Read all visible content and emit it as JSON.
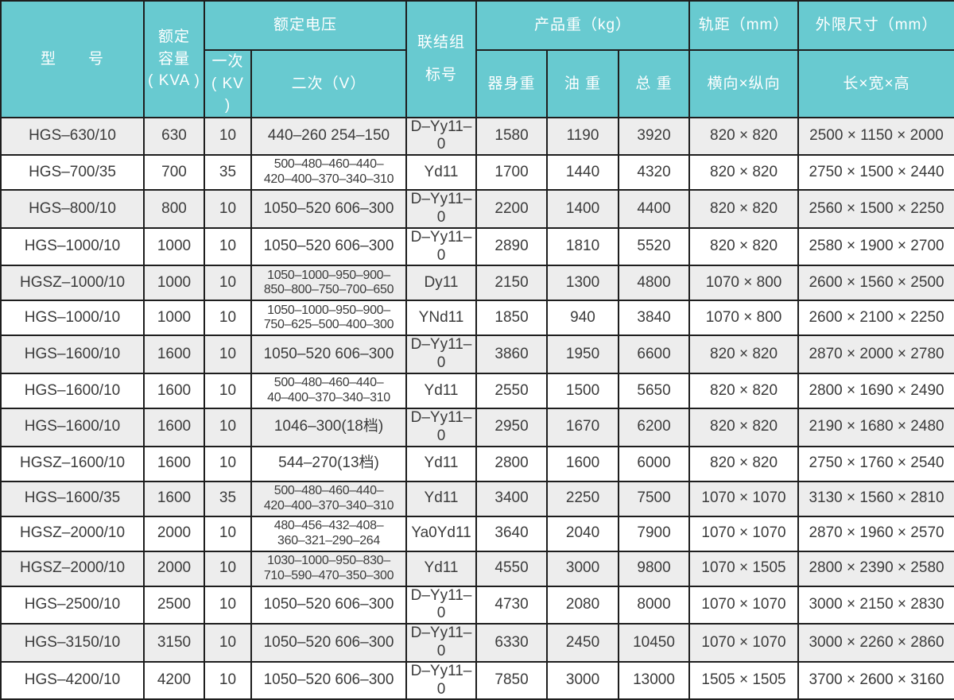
{
  "colors": {
    "header_bg": "#68cad0",
    "header_text": "#ffffff",
    "row_odd": "#ededed",
    "row_even": "#ffffff",
    "border": "#1e1e1e",
    "text": "#3b3b3b"
  },
  "table": {
    "header": {
      "model": "型　　号",
      "capacity": [
        "额定",
        "容量",
        "( KVA )"
      ],
      "voltage": "额定电压",
      "primary": [
        "一次",
        "( KV )"
      ],
      "secondary": "二次（V）",
      "connection": [
        "联结组",
        "标号"
      ],
      "weight": "产品重（kg）",
      "body_weight": "器身重",
      "oil_weight": "油 重",
      "total_weight": "总 重",
      "gauge": "轨距（mm）",
      "gauge_sub": "横向×纵向",
      "dims": "外限尺寸（mm）",
      "dims_sub": "长×宽×高"
    },
    "rows": [
      {
        "model": "HGS–630/10",
        "kva": "630",
        "primary": "10",
        "secondary": [
          "440–260 254–150"
        ],
        "conn": "D–Yy11–0",
        "body": "1580",
        "oil": "1190",
        "total": "3920",
        "gauge": "820 × 820",
        "dims": "2500 × 1150 × 2000"
      },
      {
        "model": "HGS–700/35",
        "kva": "700",
        "primary": "35",
        "secondary": [
          "500–480–460–440–",
          "420–400–370–340–310"
        ],
        "conn": "Yd11",
        "body": "1700",
        "oil": "1440",
        "total": "4320",
        "gauge": "820 × 820",
        "dims": "2750 × 1500 × 2440"
      },
      {
        "model": "HGS–800/10",
        "kva": "800",
        "primary": "10",
        "secondary": [
          "1050–520 606–300"
        ],
        "conn": "D–Yy11–0",
        "body": "2200",
        "oil": "1400",
        "total": "4400",
        "gauge": "820 × 820",
        "dims": "2560 × 1500 × 2250"
      },
      {
        "model": "HGS–1000/10",
        "kva": "1000",
        "primary": "10",
        "secondary": [
          "1050–520 606–300"
        ],
        "conn": "D–Yy11–0",
        "body": "2890",
        "oil": "1810",
        "total": "5520",
        "gauge": "820 × 820",
        "dims": "2580 × 1900 × 2700"
      },
      {
        "model": "HGSZ–1000/10",
        "kva": "1000",
        "primary": "10",
        "secondary": [
          "1050–1000–950–900–",
          "850–800–750–700–650"
        ],
        "conn": "Dy11",
        "body": "2150",
        "oil": "1300",
        "total": "4800",
        "gauge": "1070 × 800",
        "dims": "2600 × 1560 × 2500"
      },
      {
        "model": "HGS–1000/10",
        "kva": "1000",
        "primary": "10",
        "secondary": [
          "1050–1000–950–900–",
          "750–625–500–400–300"
        ],
        "conn": "YNd11",
        "body": "1850",
        "oil": "940",
        "total": "3840",
        "gauge": "1070 × 800",
        "dims": "2600 × 2100 × 2250"
      },
      {
        "model": "HGS–1600/10",
        "kva": "1600",
        "primary": "10",
        "secondary": [
          "1050–520 606–300"
        ],
        "conn": "D–Yy11–0",
        "body": "3860",
        "oil": "1950",
        "total": "6600",
        "gauge": "820 × 820",
        "dims": "2870 × 2000 × 2780"
      },
      {
        "model": "HGS–1600/10",
        "kva": "1600",
        "primary": "10",
        "secondary": [
          "500–480–460–440–",
          "40–400–370–340–310"
        ],
        "conn": "Yd11",
        "body": "2550",
        "oil": "1500",
        "total": "5650",
        "gauge": "820 × 820",
        "dims": "2800 × 1690 × 2490"
      },
      {
        "model": "HGS–1600/10",
        "kva": "1600",
        "primary": "10",
        "secondary": [
          "1046–300(18档)"
        ],
        "conn": "D–Yy11–0",
        "body": "2950",
        "oil": "1670",
        "total": "6200",
        "gauge": "820 × 820",
        "dims": "2190 × 1680 × 2480"
      },
      {
        "model": "HGSZ–1600/10",
        "kva": "1600",
        "primary": "10",
        "secondary": [
          "544–270(13档)"
        ],
        "conn": "Yd11",
        "body": "2800",
        "oil": "1600",
        "total": "6000",
        "gauge": "820 × 820",
        "dims": "2750 × 1760 × 2540"
      },
      {
        "model": "HGS–1600/35",
        "kva": "1600",
        "primary": "35",
        "secondary": [
          "500–480–460–440–",
          "420–400–370–340–310"
        ],
        "conn": "Yd11",
        "body": "3400",
        "oil": "2250",
        "total": "7500",
        "gauge": "1070 × 1070",
        "dims": "3130 × 1560 × 2810"
      },
      {
        "model": "HGSZ–2000/10",
        "kva": "2000",
        "primary": "10",
        "secondary": [
          "480–456–432–408–",
          "360–321–290–264"
        ],
        "conn": "Ya0Yd11",
        "body": "3640",
        "oil": "2040",
        "total": "7900",
        "gauge": "1070 × 1070",
        "dims": "2870 × 1960 × 2570"
      },
      {
        "model": "HGSZ–2000/10",
        "kva": "2000",
        "primary": "10",
        "secondary": [
          "1030–1000–950–830–",
          "710–590–470–350–300"
        ],
        "conn": "Yd11",
        "body": "4550",
        "oil": "3000",
        "total": "9800",
        "gauge": "1070 × 1505",
        "dims": "2800 × 2390 × 2580"
      },
      {
        "model": "HGS–2500/10",
        "kva": "2500",
        "primary": "10",
        "secondary": [
          "1050–520 606–300"
        ],
        "conn": "D–Yy11–0",
        "body": "4730",
        "oil": "2080",
        "total": "8000",
        "gauge": "1070 × 1070",
        "dims": "3000 × 2150 × 2830"
      },
      {
        "model": "HGS–3150/10",
        "kva": "3150",
        "primary": "10",
        "secondary": [
          "1050–520 606–300"
        ],
        "conn": "D–Yy11–0",
        "body": "6330",
        "oil": "2450",
        "total": "10450",
        "gauge": "1070 × 1070",
        "dims": "3000 × 2260 × 2860"
      },
      {
        "model": "HGS–4200/10",
        "kva": "4200",
        "primary": "10",
        "secondary": [
          "1050–520 606–300"
        ],
        "conn": "D–Yy11–0",
        "body": "7850",
        "oil": "3000",
        "total": "13000",
        "gauge": "1505 × 1505",
        "dims": "3700 × 2600 × 3160"
      }
    ]
  }
}
